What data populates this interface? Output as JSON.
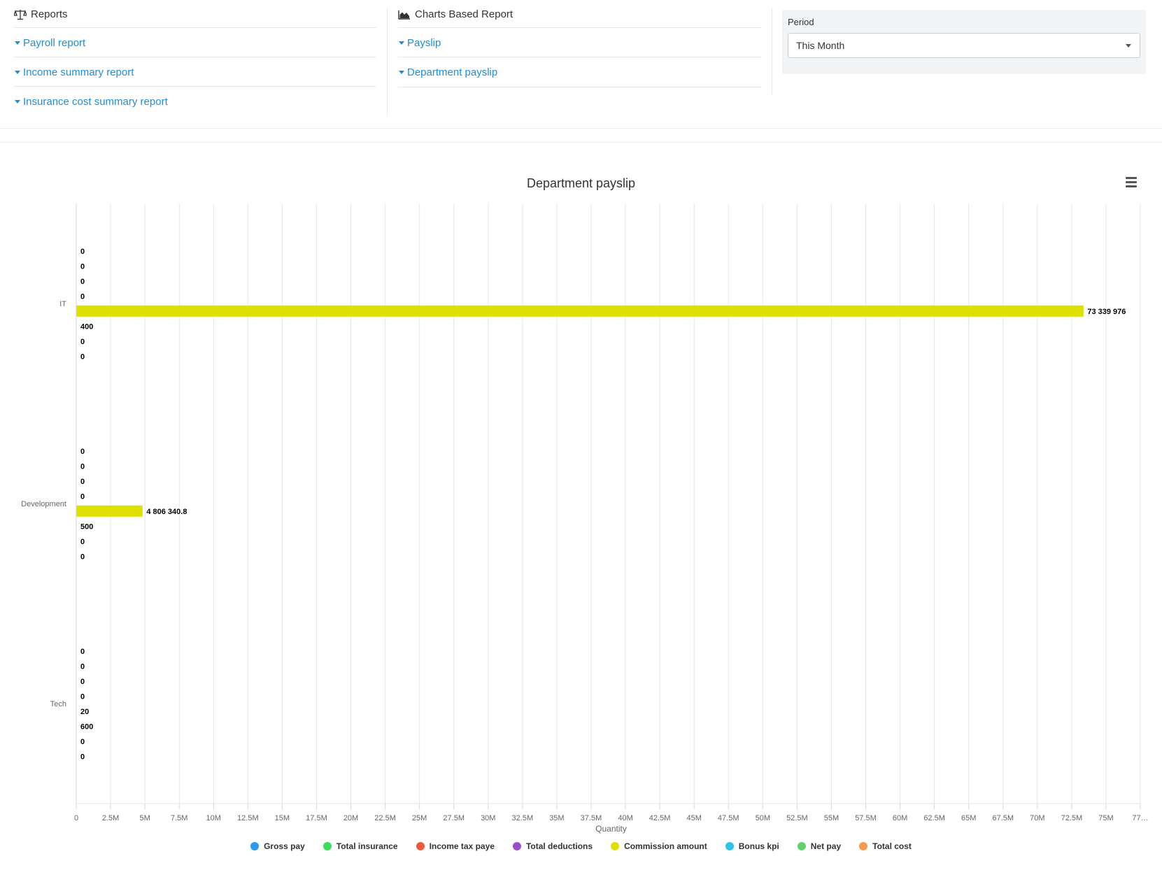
{
  "reports": {
    "title": "Reports",
    "icon": "balance-scale-icon",
    "links": [
      "Payroll report",
      "Income summary report",
      "Insurance cost summary report"
    ]
  },
  "charts_report": {
    "title": "Charts Based Report",
    "icon": "area-chart-icon",
    "links": [
      "Payslip",
      "Department payslip"
    ]
  },
  "period": {
    "label": "Period",
    "value": "This Month"
  },
  "colors": {
    "link": "#1f8dd6",
    "bar": "#dde000"
  },
  "chart_data": {
    "type": "bar",
    "orientation": "horizontal",
    "title": "Department payslip",
    "xlabel": "Quantity",
    "xlim": [
      0,
      77500000
    ],
    "x_ticks": [
      "0",
      "2.5M",
      "5M",
      "7.5M",
      "10M",
      "12.5M",
      "15M",
      "17.5M",
      "20M",
      "22.5M",
      "25M",
      "27.5M",
      "30M",
      "32.5M",
      "35M",
      "37.5M",
      "40M",
      "42.5M",
      "45M",
      "47.5M",
      "50M",
      "52.5M",
      "55M",
      "57.5M",
      "60M",
      "62.5M",
      "65M",
      "67.5M",
      "70M",
      "72.5M",
      "75M",
      "77…"
    ],
    "categories": [
      "IT",
      "Development",
      "Tech"
    ],
    "grid": true,
    "legend_position": "bottom",
    "series": [
      {
        "name": "Gross pay",
        "color": "#2b9af3",
        "values": [
          0,
          0,
          0
        ],
        "labels": [
          "0",
          "0",
          "0"
        ]
      },
      {
        "name": "Total insurance",
        "color": "#3ddc5a",
        "values": [
          0,
          0,
          0
        ],
        "labels": [
          "0",
          "0",
          "0"
        ]
      },
      {
        "name": "Income tax paye",
        "color": "#f05a3c",
        "values": [
          0,
          0,
          0
        ],
        "labels": [
          "0",
          "0",
          "0"
        ]
      },
      {
        "name": "Total deductions",
        "color": "#9b4dca",
        "values": [
          0,
          0,
          0
        ],
        "labels": [
          "0",
          "0",
          "0"
        ]
      },
      {
        "name": "Commission amount",
        "color": "#dde000",
        "values": [
          73339976,
          4806340.8,
          20
        ],
        "labels": [
          "73 339 976",
          "4 806 340.8",
          "20"
        ]
      },
      {
        "name": "Bonus kpi",
        "color": "#2bc4e8",
        "values": [
          400,
          500,
          600
        ],
        "labels": [
          "400",
          "500",
          "600"
        ]
      },
      {
        "name": "Net pay",
        "color": "#5fd36a",
        "values": [
          0,
          0,
          0
        ],
        "labels": [
          "0",
          "0",
          "0"
        ]
      },
      {
        "name": "Total cost",
        "color": "#f59a4e",
        "values": [
          0,
          0,
          0
        ],
        "labels": [
          "0",
          "0",
          "0"
        ]
      }
    ]
  }
}
